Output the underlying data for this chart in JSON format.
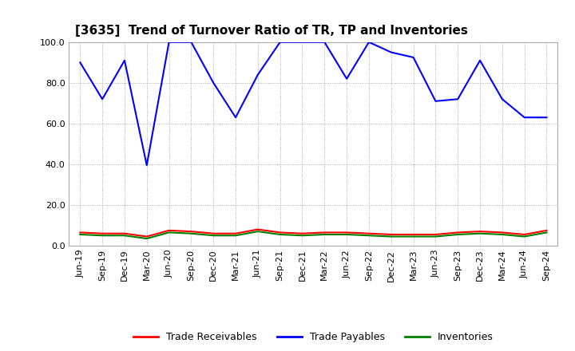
{
  "title": "[3635]  Trend of Turnover Ratio of TR, TP and Inventories",
  "x_labels": [
    "Jun-19",
    "Sep-19",
    "Dec-19",
    "Mar-20",
    "Jun-20",
    "Sep-20",
    "Dec-20",
    "Mar-21",
    "Jun-21",
    "Sep-21",
    "Dec-21",
    "Mar-22",
    "Jun-22",
    "Sep-22",
    "Dec-22",
    "Mar-23",
    "Jun-23",
    "Sep-23",
    "Dec-23",
    "Mar-24",
    "Jun-24",
    "Sep-24"
  ],
  "trade_payables": [
    90.0,
    72.0,
    91.0,
    39.5,
    100.0,
    100.0,
    80.0,
    63.0,
    84.0,
    100.0,
    100.0,
    100.0,
    82.0,
    100.0,
    95.0,
    92.5,
    71.0,
    72.0,
    91.0,
    72.0,
    63.0,
    63.0
  ],
  "trade_receivables": [
    6.5,
    6.0,
    6.0,
    4.5,
    7.5,
    7.0,
    6.0,
    6.0,
    8.0,
    6.5,
    6.0,
    6.5,
    6.5,
    6.0,
    5.5,
    5.5,
    5.5,
    6.5,
    7.0,
    6.5,
    5.5,
    7.5
  ],
  "inventories": [
    5.5,
    5.0,
    5.0,
    3.5,
    6.5,
    6.0,
    5.0,
    5.0,
    7.0,
    5.5,
    5.0,
    5.5,
    5.5,
    5.0,
    4.5,
    4.5,
    4.5,
    5.5,
    6.0,
    5.5,
    4.5,
    6.5
  ],
  "ylim": [
    0.0,
    100.0
  ],
  "yticks": [
    0.0,
    20.0,
    40.0,
    60.0,
    80.0,
    100.0
  ],
  "tp_color": "#0000FF",
  "tr_color": "#FF0000",
  "inv_color": "#008000",
  "bg_color": "#FFFFFF",
  "grid_color": "#999999",
  "title_fontsize": 11,
  "axis_fontsize": 8,
  "legend_fontsize": 9
}
